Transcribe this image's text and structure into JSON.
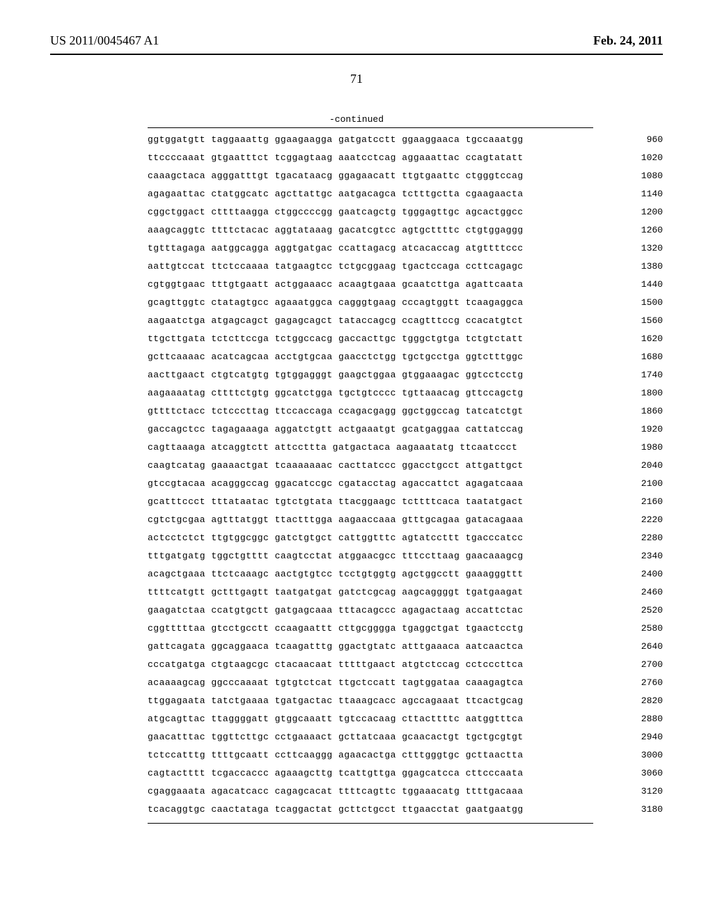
{
  "header": {
    "publication_number": "US 2011/0045467 A1",
    "publication_date": "Feb. 24, 2011"
  },
  "page_number": "71",
  "continued_label": "-continued",
  "sequence": {
    "rows": [
      {
        "groups": [
          "ggtggatgtt",
          "taggaaattg",
          "ggaagaagga",
          "gatgatcctt",
          "ggaaggaaca",
          "tgccaaatgg"
        ],
        "pos": "960"
      },
      {
        "groups": [
          "ttccccaaat",
          "gtgaatttct",
          "tcggagtaag",
          "aaatcctcag",
          "aggaaattac",
          "ccagtatatt"
        ],
        "pos": "1020"
      },
      {
        "groups": [
          "caaagctaca",
          "agggatttgt",
          "tgacataacg",
          "ggagaacatt",
          "ttgtgaattc",
          "ctgggtccag"
        ],
        "pos": "1080"
      },
      {
        "groups": [
          "agagaattac",
          "ctatggcatc",
          "agcttattgc",
          "aatgacagca",
          "tctttgctta",
          "cgaagaacta"
        ],
        "pos": "1140"
      },
      {
        "groups": [
          "cggctggact",
          "cttttaagga",
          "ctggccccgg",
          "gaatcagctg",
          "tgggagttgc",
          "agcactggcc"
        ],
        "pos": "1200"
      },
      {
        "groups": [
          "aaagcaggtc",
          "ttttctacac",
          "aggtataaag",
          "gacatcgtcc",
          "agtgcttttc",
          "ctgtggaggg"
        ],
        "pos": "1260"
      },
      {
        "groups": [
          "tgtttagaga",
          "aatggcagga",
          "aggtgatgac",
          "ccattagacg",
          "atcacaccag",
          "atgttttccc"
        ],
        "pos": "1320"
      },
      {
        "groups": [
          "aattgtccat",
          "ttctccaaaa",
          "tatgaagtcc",
          "tctgcggaag",
          "tgactccaga",
          "ccttcagagc"
        ],
        "pos": "1380"
      },
      {
        "groups": [
          "cgtggtgaac",
          "tttgtgaatt",
          "actggaaacc",
          "acaagtgaaa",
          "gcaatcttga",
          "agattcaata"
        ],
        "pos": "1440"
      },
      {
        "groups": [
          "gcagttggtc",
          "ctatagtgcc",
          "agaaatggca",
          "cagggtgaag",
          "cccagtggtt",
          "tcaagaggca"
        ],
        "pos": "1500"
      },
      {
        "groups": [
          "aagaatctga",
          "atgagcagct",
          "gagagcagct",
          "tataccagcg",
          "ccagtttccg",
          "ccacatgtct"
        ],
        "pos": "1560"
      },
      {
        "groups": [
          "ttgcttgata",
          "tctcttccga",
          "tctggccacg",
          "gaccacttgc",
          "tgggctgtga",
          "tctgtctatt"
        ],
        "pos": "1620"
      },
      {
        "groups": [
          "gcttcaaaac",
          "acatcagcaa",
          "acctgtgcaa",
          "gaacctctgg",
          "tgctgcctga",
          "ggtctttggc"
        ],
        "pos": "1680"
      },
      {
        "groups": [
          "aacttgaact",
          "ctgtcatgtg",
          "tgtggagggt",
          "gaagctggaa",
          "gtggaaagac",
          "ggtcctcctg"
        ],
        "pos": "1740"
      },
      {
        "groups": [
          "aagaaaatag",
          "cttttctgtg",
          "ggcatctgga",
          "tgctgtcccc",
          "tgttaaacag",
          "gttccagctg"
        ],
        "pos": "1800"
      },
      {
        "groups": [
          "gttttctacc",
          "tctcccttag",
          "ttccaccaga",
          "ccagacgagg",
          "ggctggccag",
          "tatcatctgt"
        ],
        "pos": "1860"
      },
      {
        "groups": [
          "gaccagctcc",
          "tagagaaaga",
          "aggatctgtt",
          "actgaaatgt",
          "gcatgaggaa",
          "cattatccag"
        ],
        "pos": "1920"
      },
      {
        "groups": [
          "cagttaaaga",
          "atcaggtctt",
          "attccttta",
          "gatgactaca",
          "aagaaatatg",
          "ttcaatccct"
        ],
        "pos": "1980"
      },
      {
        "groups": [
          "caagtcatag",
          "gaaaactgat",
          "tcaaaaaaac",
          "cacttatccc",
          "ggacctgcct",
          "attgattgct"
        ],
        "pos": "2040"
      },
      {
        "groups": [
          "gtccgtacaa",
          "acagggccag",
          "ggacatccgc",
          "cgatacctag",
          "agaccattct",
          "agagatcaaa"
        ],
        "pos": "2100"
      },
      {
        "groups": [
          "gcatttccct",
          "tttataatac",
          "tgtctgtata",
          "ttacggaagc",
          "tcttttcaca",
          "taatatgact"
        ],
        "pos": "2160"
      },
      {
        "groups": [
          "cgtctgcgaa",
          "agtttatggt",
          "ttactttgga",
          "aagaaccaaa",
          "gtttgcagaa",
          "gatacagaaa"
        ],
        "pos": "2220"
      },
      {
        "groups": [
          "actcctctct",
          "ttgtggcggc",
          "gatctgtgct",
          "cattggtttc",
          "agtatccttt",
          "tgacccatcc"
        ],
        "pos": "2280"
      },
      {
        "groups": [
          "tttgatgatg",
          "tggctgtttt",
          "caagtcctat",
          "atggaacgcc",
          "tttccttaag",
          "gaacaaagcg"
        ],
        "pos": "2340"
      },
      {
        "groups": [
          "acagctgaaa",
          "ttctcaaagc",
          "aactgtgtcc",
          "tcctgtggtg",
          "agctggcctt",
          "gaaagggttt"
        ],
        "pos": "2400"
      },
      {
        "groups": [
          "ttttcatgtt",
          "gctttgagtt",
          "taatgatgat",
          "gatctcgcag",
          "aagcaggggt",
          "tgatgaagat"
        ],
        "pos": "2460"
      },
      {
        "groups": [
          "gaagatctaa",
          "ccatgtgctt",
          "gatgagcaaa",
          "tttacagccc",
          "agagactaag",
          "accattctac"
        ],
        "pos": "2520"
      },
      {
        "groups": [
          "cggtttttaa",
          "gtcctgcctt",
          "ccaagaattt",
          "cttgcgggga",
          "tgaggctgat",
          "tgaactcctg"
        ],
        "pos": "2580"
      },
      {
        "groups": [
          "gattcagata",
          "ggcaggaaca",
          "tcaagatttg",
          "ggactgtatc",
          "atttgaaaca",
          "aatcaactca"
        ],
        "pos": "2640"
      },
      {
        "groups": [
          "cccatgatga",
          "ctgtaagcgc",
          "ctacaacaat",
          "tttttgaact",
          "atgtctccag",
          "cctcccttca"
        ],
        "pos": "2700"
      },
      {
        "groups": [
          "acaaaagcag",
          "ggcccaaaat",
          "tgtgtctcat",
          "ttgctccatt",
          "tagtggataa",
          "caaagagtca"
        ],
        "pos": "2760"
      },
      {
        "groups": [
          "ttggagaata",
          "tatctgaaaa",
          "tgatgactac",
          "ttaaagcacc",
          "agccagaaat",
          "ttcactgcag"
        ],
        "pos": "2820"
      },
      {
        "groups": [
          "atgcagttac",
          "ttaggggatt",
          "gtggcaaatt",
          "tgtccacaag",
          "cttacttttc",
          "aatggtttca"
        ],
        "pos": "2880"
      },
      {
        "groups": [
          "gaacatttac",
          "tggttcttgc",
          "cctgaaaact",
          "gcttatcaaa",
          "gcaacactgt",
          "tgctgcgtgt"
        ],
        "pos": "2940"
      },
      {
        "groups": [
          "tctccatttg",
          "ttttgcaatt",
          "ccttcaaggg",
          "agaacactga",
          "ctttgggtgc",
          "gcttaactta"
        ],
        "pos": "3000"
      },
      {
        "groups": [
          "cagtactttt",
          "tcgaccaccc",
          "agaaagcttg",
          "tcattgttga",
          "ggagcatcca",
          "cttcccaata"
        ],
        "pos": "3060"
      },
      {
        "groups": [
          "cgaggaaata",
          "agacatcacc",
          "cagagcacat",
          "ttttcagttc",
          "tggaaacatg",
          "ttttgacaaa"
        ],
        "pos": "3120"
      },
      {
        "groups": [
          "tcacaggtgc",
          "caactataga",
          "tcaggactat",
          "gcttctgcct",
          "ttgaacctat",
          "gaatgaatgg"
        ],
        "pos": "3180"
      }
    ]
  },
  "style": {
    "background_color": "#ffffff",
    "text_color": "#000000",
    "mono_font": "Courier New",
    "serif_font": "Times New Roman",
    "header_fontsize": 18,
    "pagenum_fontsize": 18,
    "seq_fontsize": 13,
    "rule_color": "#000000"
  }
}
